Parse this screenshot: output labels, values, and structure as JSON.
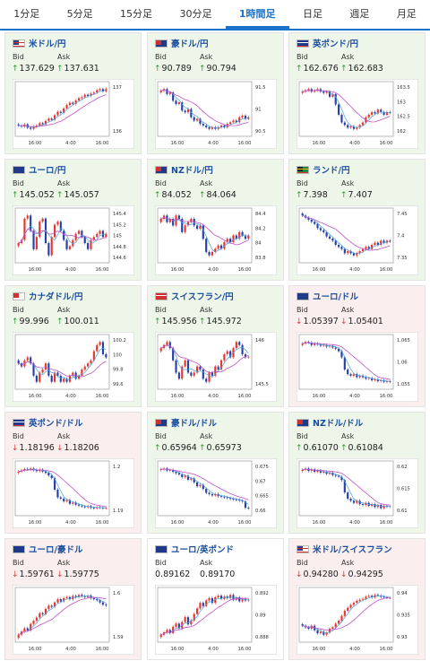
{
  "tabs": [
    {
      "label": "1分足",
      "active": false
    },
    {
      "label": "5分足",
      "active": false
    },
    {
      "label": "15分足",
      "active": false
    },
    {
      "label": "30分足",
      "active": false
    },
    {
      "label": "1時間足",
      "active": true
    },
    {
      "label": "日足",
      "active": false
    },
    {
      "label": "週足",
      "active": false
    },
    {
      "label": "月足",
      "active": false
    }
  ],
  "labels": {
    "bid": "Bid",
    "ask": "Ask"
  },
  "colors": {
    "up": "#2e9a33",
    "down": "#d43a3a",
    "card_up": "#eef6ea",
    "card_down": "#fbeeee",
    "candle_up": "#e8352d",
    "candle_down": "#2540a8",
    "ma_short": "#4aa3df",
    "ma_long": "#c050c8"
  },
  "cards": [
    {
      "name": "米ドル/円",
      "flag": "us",
      "trend": "up",
      "bid": "137.629",
      "ask": "137.631",
      "bid_dir": "up",
      "ask_dir": "up",
      "chart": {
        "yticks": [
          "137",
          "136"
        ],
        "xticks": [
          "16:00",
          "4:00",
          "16:00"
        ],
        "close": [
          136.0,
          135.95,
          136.05,
          135.9,
          135.85,
          135.95,
          136.0,
          136.1,
          136.05,
          136.2,
          136.3,
          136.25,
          136.45,
          136.6,
          136.55,
          136.75,
          136.9,
          137.0,
          136.95,
          137.1,
          137.2,
          137.25,
          137.35,
          137.3,
          137.4,
          137.45,
          137.55,
          137.6,
          137.5,
          137.6
        ]
      }
    },
    {
      "name": "豪ドル/円",
      "flag": "au",
      "trend": "up",
      "bid": "90.789",
      "ask": "90.794",
      "bid_dir": "up",
      "ask_dir": "up",
      "chart": {
        "yticks": [
          "91.5",
          "91",
          "90.5"
        ],
        "xticks": [
          "16:00",
          "4:00",
          "16:00"
        ],
        "close": [
          91.6,
          91.65,
          91.5,
          91.55,
          91.3,
          91.2,
          91.25,
          91.0,
          90.95,
          91.05,
          90.8,
          90.7,
          90.75,
          90.6,
          90.55,
          90.5,
          90.45,
          90.5,
          90.45,
          90.5,
          90.55,
          90.5,
          90.6,
          90.65,
          90.7,
          90.65,
          90.8,
          90.85,
          90.75,
          90.8
        ]
      }
    },
    {
      "name": "英ポンド/円",
      "flag": "gb",
      "trend": "up",
      "bid": "162.676",
      "ask": "162.683",
      "bid_dir": "up",
      "ask_dir": "up",
      "chart": {
        "yticks": [
          "163.5",
          "163",
          "162.5",
          "162"
        ],
        "xticks": [
          "16:00",
          "4:00",
          "16:00"
        ],
        "close": [
          163.5,
          163.55,
          163.6,
          163.5,
          163.55,
          163.6,
          163.5,
          163.45,
          163.5,
          163.3,
          163.4,
          163.0,
          162.6,
          162.3,
          162.2,
          162.1,
          162.15,
          162.05,
          162.1,
          162.2,
          162.3,
          162.5,
          162.6,
          162.7,
          162.65,
          162.8,
          162.7,
          162.6,
          162.7,
          162.68
        ]
      }
    },
    {
      "name": "ユーロ/円",
      "flag": "eu",
      "trend": "up",
      "bid": "145.052",
      "ask": "145.057",
      "bid_dir": "up",
      "ask_dir": "up",
      "chart": {
        "yticks": [
          "145.4",
          "145.2",
          "145",
          "144.8",
          "144.6"
        ],
        "xticks": [
          "16:00",
          "4:00",
          "16:00"
        ],
        "close": [
          144.9,
          144.95,
          145.3,
          145.35,
          145.1,
          144.8,
          145.0,
          145.25,
          145.3,
          144.9,
          144.7,
          145.0,
          145.2,
          145.25,
          145.1,
          144.95,
          144.8,
          144.85,
          144.95,
          145.05,
          145.1,
          145.0,
          144.9,
          144.8,
          144.95,
          145.0,
          145.05,
          145.1,
          145.0,
          145.05
        ]
      }
    },
    {
      "name": "NZドル/円",
      "flag": "nz",
      "trend": "up",
      "bid": "84.052",
      "ask": "84.064",
      "bid_dir": "up",
      "ask_dir": "up",
      "chart": {
        "yticks": [
          "84.4",
          "84.2",
          "84",
          "83.8"
        ],
        "xticks": [
          "16:00",
          "4:00",
          "16:00"
        ],
        "close": [
          84.3,
          84.35,
          84.25,
          84.3,
          84.2,
          84.35,
          84.3,
          84.1,
          84.2,
          84.25,
          84.3,
          84.2,
          84.15,
          84.2,
          84.0,
          83.8,
          83.75,
          83.8,
          83.85,
          83.9,
          83.85,
          83.95,
          84.0,
          83.95,
          84.05,
          84.0,
          84.1,
          84.05,
          84.0,
          84.05
        ]
      }
    },
    {
      "name": "ランド/円",
      "flag": "za",
      "trend": "up",
      "bid": "7.398",
      "ask": "7.407",
      "bid_dir": "up",
      "ask_dir": "up",
      "chart": {
        "yticks": [
          "7.45",
          "7.4",
          "7.35"
        ],
        "xticks": [
          "16:00",
          "4:00",
          "16:00"
        ],
        "close": [
          7.46,
          7.455,
          7.45,
          7.445,
          7.44,
          7.43,
          7.425,
          7.42,
          7.41,
          7.405,
          7.4,
          7.39,
          7.385,
          7.38,
          7.37,
          7.375,
          7.37,
          7.365,
          7.37,
          7.375,
          7.38,
          7.385,
          7.38,
          7.39,
          7.395,
          7.39,
          7.4,
          7.395,
          7.4,
          7.398
        ]
      }
    },
    {
      "name": "カナダドル/円",
      "flag": "ca",
      "trend": "up",
      "bid": "99.996",
      "ask": "100.011",
      "bid_dir": "up",
      "ask_dir": "up",
      "chart": {
        "yticks": [
          "100.2",
          "100",
          "99.8",
          "99.6"
        ],
        "xticks": [
          "16:00",
          "4:00",
          "16:00"
        ],
        "close": [
          99.9,
          99.85,
          99.95,
          100.0,
          99.9,
          99.7,
          99.6,
          99.75,
          99.8,
          99.9,
          99.7,
          99.6,
          99.75,
          99.7,
          99.6,
          99.65,
          99.6,
          99.7,
          99.75,
          99.65,
          99.7,
          99.8,
          99.85,
          99.9,
          99.95,
          100.1,
          100.2,
          100.25,
          100.05,
          100.0
        ]
      }
    },
    {
      "name": "スイスフラン/円",
      "flag": "ch",
      "trend": "up",
      "bid": "145.956",
      "ask": "145.972",
      "bid_dir": "up",
      "ask_dir": "up",
      "chart": {
        "yticks": [
          "146",
          "145.5"
        ],
        "xticks": [
          "16:00",
          "4:00",
          "16:00"
        ],
        "close": [
          146.1,
          146.15,
          146.2,
          146.1,
          145.9,
          145.7,
          145.6,
          145.8,
          145.9,
          145.7,
          145.65,
          145.7,
          145.8,
          145.75,
          145.6,
          145.55,
          145.7,
          145.65,
          145.8,
          145.75,
          145.9,
          146.0,
          146.05,
          145.95,
          146.1,
          146.2,
          146.15,
          146.0,
          145.95,
          145.96
        ]
      }
    },
    {
      "name": "ユーロ/ドル",
      "flag": "eu",
      "trend": "down",
      "bid": "1.05397",
      "ask": "1.05401",
      "bid_dir": "down",
      "ask_dir": "down",
      "chart": {
        "yticks": [
          "1.065",
          "1.06",
          "1.055"
        ],
        "xticks": [
          "16:00",
          "4:00",
          "16:00"
        ],
        "close": [
          1.0665,
          1.067,
          1.0668,
          1.066,
          1.0665,
          1.0662,
          1.0658,
          1.066,
          1.0655,
          1.0658,
          1.0652,
          1.0648,
          1.064,
          1.062,
          1.058,
          1.0565,
          1.056,
          1.0565,
          1.0555,
          1.056,
          1.0555,
          1.055,
          1.0552,
          1.0545,
          1.0548,
          1.0542,
          1.0545,
          1.054,
          1.0542,
          1.054
        ]
      }
    },
    {
      "name": "英ポンド/ドル",
      "flag": "gb",
      "trend": "down",
      "bid": "1.18196",
      "ask": "1.18206",
      "bid_dir": "down",
      "ask_dir": "down",
      "chart": {
        "yticks": [
          "1.2",
          "1.19"
        ],
        "xticks": [
          "16:00",
          "4:00",
          "16:00"
        ],
        "close": [
          1.196,
          1.1965,
          1.197,
          1.1968,
          1.1972,
          1.1966,
          1.1962,
          1.1968,
          1.196,
          1.1955,
          1.1945,
          1.1935,
          1.189,
          1.186,
          1.1855,
          1.1845,
          1.185,
          1.1835,
          1.184,
          1.1832,
          1.1828,
          1.1825,
          1.1822,
          1.1826,
          1.182,
          1.1818,
          1.1822,
          1.182,
          1.1818,
          1.182
        ]
      }
    },
    {
      "name": "豪ドル/ドル",
      "flag": "au",
      "trend": "up",
      "bid": "0.65964",
      "ask": "0.65973",
      "bid_dir": "up",
      "ask_dir": "up",
      "chart": {
        "yticks": [
          "0.675",
          "0.67",
          "0.665",
          "0.66"
        ],
        "xticks": [
          "16:00",
          "4:00",
          "16:00"
        ],
        "close": [
          0.6745,
          0.6748,
          0.674,
          0.6742,
          0.6735,
          0.673,
          0.6725,
          0.6715,
          0.672,
          0.6705,
          0.671,
          0.6695,
          0.668,
          0.6685,
          0.667,
          0.6655,
          0.665,
          0.6645,
          0.665,
          0.6642,
          0.664,
          0.6638,
          0.6635,
          0.6632,
          0.663,
          0.6628,
          0.6625,
          0.6622,
          0.6598,
          0.6596
        ]
      }
    },
    {
      "name": "NZドル/ドル",
      "flag": "nz",
      "trend": "up",
      "bid": "0.61070",
      "ask": "0.61084",
      "bid_dir": "up",
      "ask_dir": "up",
      "chart": {
        "yticks": [
          "0.62",
          "0.615",
          "0.61"
        ],
        "xticks": [
          "16:00",
          "4:00",
          "16:00"
        ],
        "close": [
          0.6195,
          0.6198,
          0.6192,
          0.6196,
          0.619,
          0.6193,
          0.6188,
          0.619,
          0.6185,
          0.6188,
          0.6182,
          0.618,
          0.6178,
          0.617,
          0.614,
          0.6125,
          0.612,
          0.6115,
          0.612,
          0.6112,
          0.611,
          0.6115,
          0.6108,
          0.6112,
          0.6105,
          0.611,
          0.6102,
          0.6108,
          0.6106,
          0.6107
        ]
      }
    },
    {
      "name": "ユーロ/豪ドル",
      "flag": "eu",
      "trend": "down",
      "bid": "1.59761",
      "ask": "1.59775",
      "bid_dir": "down",
      "ask_dir": "down",
      "chart": {
        "yticks": [
          "1.6",
          "1.59"
        ],
        "xticks": [
          "16:00",
          "4:00",
          "16:00"
        ],
        "close": [
          1.584,
          1.5855,
          1.587,
          1.586,
          1.589,
          1.5905,
          1.592,
          1.594,
          1.5935,
          1.596,
          1.5975,
          1.597,
          1.599,
          1.6005,
          1.5995,
          1.601,
          1.6015,
          1.6005,
          1.602,
          1.6015,
          1.6025,
          1.602,
          1.6015,
          1.6022,
          1.601,
          1.6005,
          1.6,
          1.599,
          1.598,
          1.5976
        ]
      }
    },
    {
      "name": "ユーロ/英ポンド",
      "flag": "eu",
      "trend": "flat",
      "bid": "0.89162",
      "ask": "0.89170",
      "bid_dir": "",
      "ask_dir": "",
      "chart": {
        "yticks": [
          "0.892",
          "0.89",
          "0.888"
        ],
        "xticks": [
          "16:00",
          "4:00",
          "16:00"
        ],
        "close": [
          0.8872,
          0.8875,
          0.8878,
          0.8874,
          0.8882,
          0.8886,
          0.888,
          0.8888,
          0.8894,
          0.8885,
          0.889,
          0.8898,
          0.8905,
          0.8912,
          0.8908,
          0.8915,
          0.8918,
          0.8912,
          0.8919,
          0.8921,
          0.8917,
          0.892,
          0.8918,
          0.8922,
          0.8916,
          0.8919,
          0.8914,
          0.8917,
          0.8915,
          0.8916
        ]
      }
    },
    {
      "name": "米ドル/スイスフラン",
      "flag": "us",
      "trend": "down",
      "bid": "0.94280",
      "ask": "0.94295",
      "bid_dir": "down",
      "ask_dir": "down",
      "chart": {
        "yticks": [
          "0.94",
          "0.935",
          "0.93"
        ],
        "xticks": [
          "16:00",
          "4:00",
          "16:00"
        ],
        "close": [
          0.9335,
          0.933,
          0.9325,
          0.9335,
          0.932,
          0.931,
          0.9315,
          0.9305,
          0.9312,
          0.9325,
          0.933,
          0.9342,
          0.9352,
          0.9368,
          0.9385,
          0.9395,
          0.9405,
          0.9412,
          0.9418,
          0.9422,
          0.9425,
          0.9432,
          0.9435,
          0.943,
          0.9438,
          0.9436,
          0.9432,
          0.943,
          0.9428,
          0.9428
        ]
      }
    }
  ]
}
